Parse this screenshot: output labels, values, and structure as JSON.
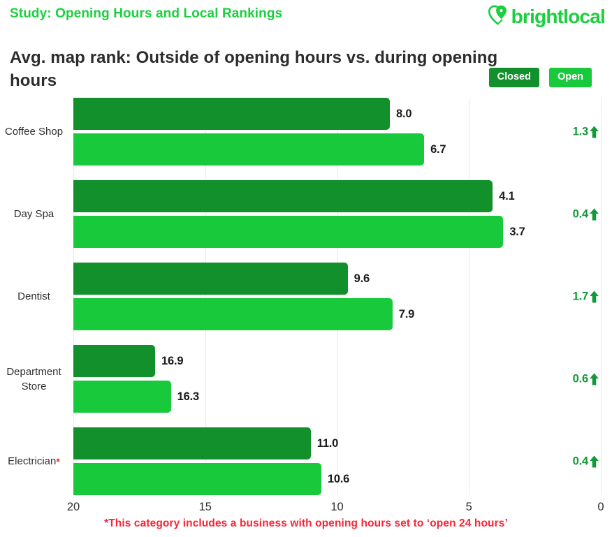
{
  "header": {
    "study_label": "Study: Opening Hours and Local Rankings",
    "brand": "brightlocal",
    "title": "Avg. map rank: Outside of opening hours vs. during opening hours"
  },
  "legend": {
    "closed_label": "Closed",
    "open_label": "Open"
  },
  "footnote": "*This category includes a business with opening hours set to ‘open 24 hours’",
  "colors": {
    "brand_green": "#1bd03e",
    "closed_green": "#12902b",
    "open_green": "#18ca3b",
    "diff_green": "#14993a",
    "note_red": "#fb2436"
  },
  "chart_data": {
    "type": "bar",
    "orientation": "horizontal",
    "title": "Avg. map rank: Outside of opening hours vs. during opening hours",
    "xlabel": "Avg. map rank",
    "ylabel": "",
    "axis_reversed": true,
    "xlim": [
      20,
      0
    ],
    "x_ticks": [
      20,
      15,
      10,
      5,
      0
    ],
    "grid": true,
    "legend_position": "top-right",
    "categories": [
      {
        "label": "Coffee Shop",
        "asterisk": false
      },
      {
        "label": "Day Spa",
        "asterisk": false
      },
      {
        "label": "Dentist",
        "asterisk": false
      },
      {
        "label": "Department Store",
        "asterisk": false
      },
      {
        "label": "Electrician",
        "asterisk": true
      }
    ],
    "series": [
      {
        "name": "Closed",
        "color": "#12902b",
        "values": [
          8.0,
          4.1,
          9.6,
          16.9,
          11.0
        ]
      },
      {
        "name": "Open",
        "color": "#18ca3b",
        "values": [
          6.7,
          3.7,
          7.9,
          16.3,
          10.6
        ]
      }
    ],
    "improvements": {
      "label_suffix": "↑",
      "values": [
        1.3,
        0.4,
        1.7,
        0.6,
        0.4
      ]
    }
  }
}
